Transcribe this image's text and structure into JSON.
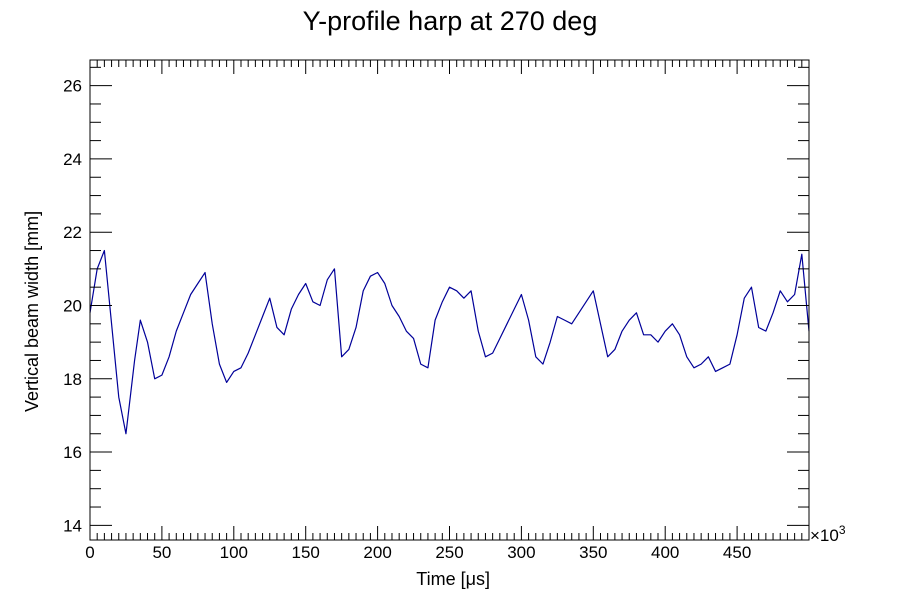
{
  "chart_data": {
    "type": "line",
    "title": "Y-profile harp at 270 deg",
    "xlabel": "Time [μs]",
    "ylabel": "Vertical beam width [mm]",
    "x_multiplier_label": "×10",
    "x_multiplier_exponent": "3",
    "x_unit_multiplier": 1000,
    "xlim": [
      0,
      500000
    ],
    "ylim": [
      13.6,
      26.7
    ],
    "x_ticks": [
      0,
      50,
      100,
      150,
      200,
      250,
      300,
      350,
      400,
      450
    ],
    "x_tick_labels": [
      "0",
      "50",
      "100",
      "150",
      "200",
      "250",
      "300",
      "350",
      "400",
      "450"
    ],
    "y_ticks": [
      14,
      16,
      18,
      20,
      22,
      24,
      26
    ],
    "y_tick_labels": [
      "14",
      "16",
      "18",
      "20",
      "22",
      "24",
      "26"
    ],
    "grid": false,
    "legend": "none",
    "line_color": "#000099",
    "series": [
      {
        "x": [
          0,
          5000,
          10000,
          15000,
          20000,
          25000,
          31000,
          35000,
          40000,
          45000,
          50000,
          55000,
          60000,
          65000,
          70000,
          75000,
          80000,
          85000,
          90000,
          95000,
          100000,
          105000,
          110000,
          115000,
          120000,
          125000,
          130000,
          135000,
          140000,
          145000,
          150000,
          155000,
          160000,
          165000,
          170000,
          175000,
          180000,
          185000,
          190000,
          195000,
          200000,
          205000,
          210000,
          215000,
          220000,
          225000,
          230000,
          235000,
          240000,
          245000,
          250000,
          255000,
          260000,
          265000,
          270000,
          275000,
          280000,
          285000,
          290000,
          295000,
          300000,
          305000,
          310000,
          315000,
          320000,
          325000,
          330000,
          335000,
          340000,
          345000,
          350000,
          355000,
          360000,
          365000,
          370000,
          375000,
          380000,
          385000,
          390000,
          395000,
          400000,
          405000,
          410000,
          415000,
          420000,
          425000,
          430000,
          435000,
          440000,
          445000,
          450000,
          455000,
          460000,
          465000,
          470000,
          475000,
          480000,
          485000,
          490000,
          495000,
          500000
        ],
        "values": [
          19.8,
          21.0,
          21.5,
          19.5,
          17.5,
          16.5,
          18.5,
          19.6,
          19.0,
          18.0,
          18.1,
          18.6,
          19.3,
          19.8,
          20.3,
          20.6,
          20.9,
          19.5,
          18.4,
          17.9,
          18.2,
          18.3,
          18.7,
          19.2,
          19.7,
          20.2,
          19.4,
          19.2,
          19.9,
          20.3,
          20.6,
          20.1,
          20.0,
          20.7,
          21.0,
          18.6,
          18.8,
          19.4,
          20.4,
          20.8,
          20.9,
          20.6,
          20.0,
          19.7,
          19.3,
          19.1,
          18.4,
          18.3,
          19.6,
          20.1,
          20.5,
          20.4,
          20.2,
          20.4,
          19.3,
          18.6,
          18.7,
          19.1,
          19.5,
          19.9,
          20.3,
          19.6,
          18.6,
          18.4,
          19.0,
          19.7,
          19.6,
          19.5,
          19.8,
          20.1,
          20.4,
          19.5,
          18.6,
          18.8,
          19.3,
          19.6,
          19.8,
          19.2,
          19.2,
          19.0,
          19.3,
          19.5,
          19.2,
          18.6,
          18.3,
          18.4,
          18.6,
          18.2,
          18.3,
          18.4,
          19.2,
          20.2,
          20.5,
          19.4,
          19.3,
          19.8,
          20.4,
          20.1,
          20.3,
          21.4,
          19.3
        ]
      }
    ]
  }
}
